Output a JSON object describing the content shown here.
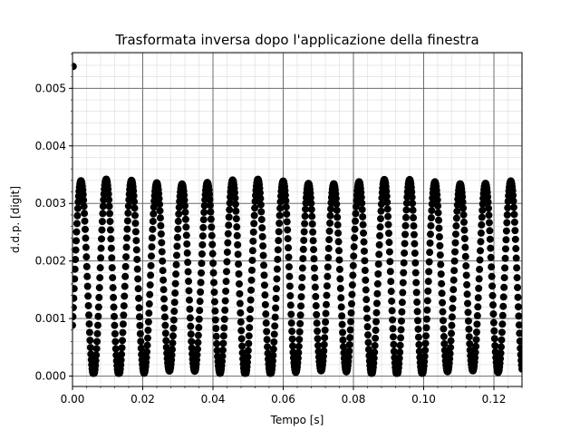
{
  "chart_data": {
    "type": "scatter",
    "title": "Trasformata inversa dopo l'applicazione della finestra",
    "xlabel": "Tempo [s]",
    "ylabel": "d.d.p. [digit]",
    "xlim": [
      0.0,
      0.128
    ],
    "ylim": [
      -0.00018,
      0.00562
    ],
    "x_ticks": [
      "0.00",
      "0.02",
      "0.04",
      "0.06",
      "0.08",
      "0.10",
      "0.12"
    ],
    "x_tick_values": [
      0.0,
      0.02,
      0.04,
      0.06,
      0.08,
      0.1,
      0.12
    ],
    "y_ticks": [
      "0.000",
      "0.001",
      "0.002",
      "0.003",
      "0.004",
      "0.005"
    ],
    "y_tick_values": [
      0.0,
      0.001,
      0.002,
      0.003,
      0.004,
      0.005
    ],
    "grid": "major and minor",
    "marker_color": "#000000",
    "outlier_points": [
      {
        "x": 0.0002,
        "y": 0.00538
      }
    ],
    "signal_envelope": {
      "min": 5e-05,
      "max": 0.00338,
      "period_s": 0.0072,
      "first_peak_x": 0.0024
    }
  }
}
